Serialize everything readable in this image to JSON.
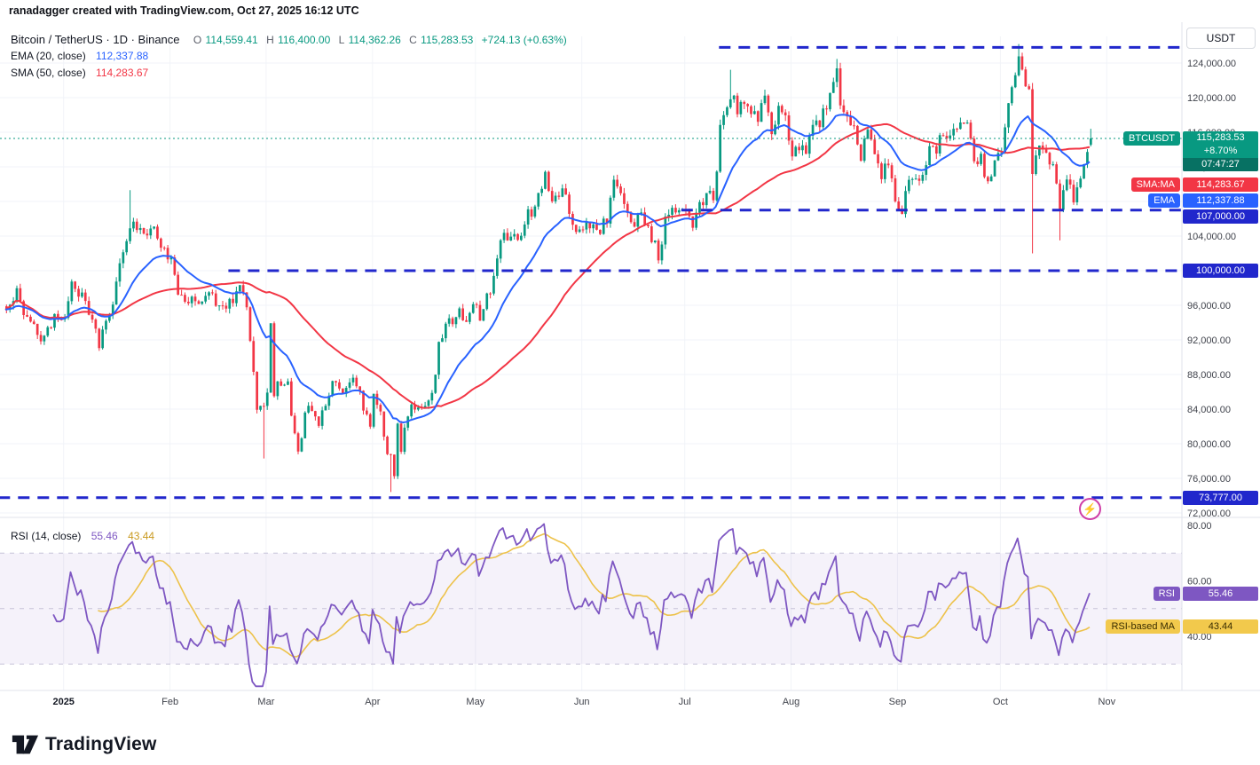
{
  "attribution": "ranadagger created with TradingView.com, Oct 27, 2025 16:12 UTC",
  "footer": {
    "logo_text": "TradingView"
  },
  "icons": {
    "lightning": "⚡"
  },
  "header_legend": {
    "symbol_title": "Bitcoin / TetherUS · 1D · Binance",
    "ohlc": {
      "o_label": "O",
      "o": "114,559.41",
      "h_label": "H",
      "h": "116,400.00",
      "l_label": "L",
      "l": "114,362.26",
      "c_label": "C",
      "c": "115,283.53",
      "change": "+724.13 (+0.63%)"
    },
    "ema_label": "EMA (20, close)",
    "ema_value": "112,337.88",
    "sma_label": "SMA (50, close)",
    "sma_value": "114,283.67"
  },
  "rsi_legend": {
    "label": "RSI (14, close)",
    "rsi_value": "55.46",
    "ma_value": "43.44"
  },
  "price_axis": {
    "currency_button": "USDT",
    "symbol_tag": "BTCUSDT",
    "last_price": "115,283.53",
    "change_pct": "+8.70%",
    "countdown": "07:47:27",
    "sma_tag": "SMA:MA",
    "sma_price": "114,283.67",
    "ema_tag": "EMA",
    "ema_price": "112,337.88"
  },
  "rsi_labels": {
    "tag": "RSI",
    "value": "55.46",
    "ma_tag": "RSI-based MA",
    "ma_value": "43.44"
  },
  "chart_data": {
    "type": "candlestick",
    "symbol": "BTCUSDT",
    "exchange": "Binance",
    "timeframe": "1D",
    "seed": 11,
    "num_days": 317,
    "y_range": [
      71000,
      127600
    ],
    "price_ticks": [
      124000,
      120000,
      116000,
      112000,
      108000,
      104000,
      100000,
      96000,
      92000,
      88000,
      84000,
      80000,
      76000,
      72000
    ],
    "ohlc_current": {
      "open": 114559.41,
      "high": 116400.0,
      "low": 114362.26,
      "close": 115283.53,
      "change": "+724.13",
      "change_pct": "+0.63%"
    },
    "close_path": [
      [
        0,
        95800
      ],
      [
        3,
        97800
      ],
      [
        6,
        94200
      ],
      [
        10,
        92300
      ],
      [
        14,
        94400
      ],
      [
        17,
        94600
      ],
      [
        19,
        98200
      ],
      [
        22,
        96900
      ],
      [
        25,
        94500
      ],
      [
        27,
        91600
      ],
      [
        30,
        94600
      ],
      [
        33,
        100500
      ],
      [
        35,
        103000
      ],
      [
        37,
        106100
      ],
      [
        40,
        103700
      ],
      [
        43,
        104800
      ],
      [
        46,
        102600
      ],
      [
        48,
        101300
      ],
      [
        50,
        97700
      ],
      [
        53,
        96600
      ],
      [
        56,
        96500
      ],
      [
        59,
        97900
      ],
      [
        62,
        95800
      ],
      [
        65,
        96100
      ],
      [
        68,
        98300
      ],
      [
        70,
        95500
      ],
      [
        71,
        91500
      ],
      [
        72,
        88700
      ],
      [
        73,
        84200
      ],
      [
        75,
        84300
      ],
      [
        76,
        86000
      ],
      [
        77,
        94200
      ],
      [
        78,
        86100
      ],
      [
        80,
        87200
      ],
      [
        82,
        86800
      ],
      [
        84,
        80700
      ],
      [
        85,
        78600
      ],
      [
        87,
        83700
      ],
      [
        89,
        84000
      ],
      [
        91,
        82600
      ],
      [
        93,
        84000
      ],
      [
        95,
        86900
      ],
      [
        98,
        85800
      ],
      [
        100,
        87500
      ],
      [
        102,
        86900
      ],
      [
        104,
        84400
      ],
      [
        106,
        82500
      ],
      [
        107,
        85200
      ],
      [
        109,
        83200
      ],
      [
        111,
        78300
      ],
      [
        112,
        79200
      ],
      [
        113,
        76300
      ],
      [
        114,
        82600
      ],
      [
        115,
        79600
      ],
      [
        117,
        83700
      ],
      [
        119,
        84500
      ],
      [
        121,
        83600
      ],
      [
        123,
        84900
      ],
      [
        125,
        87500
      ],
      [
        126,
        91200
      ],
      [
        128,
        93900
      ],
      [
        130,
        94300
      ],
      [
        132,
        95000
      ],
      [
        134,
        94300
      ],
      [
        136,
        96500
      ],
      [
        138,
        94300
      ],
      [
        140,
        96800
      ],
      [
        142,
        99000
      ],
      [
        144,
        103500
      ],
      [
        146,
        104100
      ],
      [
        148,
        103800
      ],
      [
        150,
        103500
      ],
      [
        152,
        106400
      ],
      [
        154,
        106800
      ],
      [
        156,
        109700
      ],
      [
        157,
        111700
      ],
      [
        159,
        107300
      ],
      [
        161,
        109000
      ],
      [
        163,
        108900
      ],
      [
        165,
        105600
      ],
      [
        167,
        104600
      ],
      [
        169,
        105800
      ],
      [
        171,
        104800
      ],
      [
        173,
        104900
      ],
      [
        175,
        105700
      ],
      [
        177,
        110200
      ],
      [
        179,
        108600
      ],
      [
        181,
        106000
      ],
      [
        183,
        105400
      ],
      [
        185,
        106800
      ],
      [
        187,
        104600
      ],
      [
        189,
        103300
      ],
      [
        190,
        100900
      ],
      [
        192,
        106100
      ],
      [
        194,
        107300
      ],
      [
        196,
        107100
      ],
      [
        198,
        107200
      ],
      [
        200,
        105600
      ],
      [
        202,
        108000
      ],
      [
        204,
        108300
      ],
      [
        206,
        108900
      ],
      [
        207,
        111000
      ],
      [
        208,
        117500
      ],
      [
        210,
        119100
      ],
      [
        211,
        120500
      ],
      [
        213,
        118700
      ],
      [
        215,
        119300
      ],
      [
        217,
        118000
      ],
      [
        219,
        117400
      ],
      [
        221,
        119900
      ],
      [
        223,
        115100
      ],
      [
        225,
        119400
      ],
      [
        227,
        118000
      ],
      [
        229,
        113400
      ],
      [
        231,
        114600
      ],
      [
        233,
        114100
      ],
      [
        235,
        116900
      ],
      [
        237,
        117400
      ],
      [
        239,
        119000
      ],
      [
        240,
        120200
      ],
      [
        242,
        123300
      ],
      [
        243,
        118300
      ],
      [
        245,
        117400
      ],
      [
        247,
        116200
      ],
      [
        249,
        113500
      ],
      [
        251,
        116900
      ],
      [
        253,
        113000
      ],
      [
        255,
        111200
      ],
      [
        257,
        112900
      ],
      [
        259,
        108200
      ],
      [
        261,
        107300
      ],
      [
        263,
        111200
      ],
      [
        265,
        110700
      ],
      [
        267,
        111200
      ],
      [
        269,
        114100
      ],
      [
        271,
        114000
      ],
      [
        273,
        116100
      ],
      [
        275,
        115400
      ],
      [
        277,
        116800
      ],
      [
        279,
        117500
      ],
      [
        281,
        115700
      ],
      [
        282,
        112800
      ],
      [
        284,
        113400
      ],
      [
        286,
        109700
      ],
      [
        288,
        112200
      ],
      [
        290,
        114100
      ],
      [
        292,
        119100
      ],
      [
        294,
        122400
      ],
      [
        295,
        125300
      ],
      [
        297,
        121700
      ],
      [
        298,
        121500
      ],
      [
        299,
        111600
      ],
      [
        301,
        114300
      ],
      [
        303,
        113100
      ],
      [
        305,
        112500
      ],
      [
        307,
        106600
      ],
      [
        309,
        110800
      ],
      [
        311,
        108500
      ],
      [
        313,
        110100
      ],
      [
        314,
        111700
      ],
      [
        315,
        114300
      ],
      [
        316,
        115283.53
      ]
    ],
    "wicks": [
      {
        "day": 36,
        "high": 109300
      },
      {
        "day": 75,
        "low": 78300
      },
      {
        "day": 112,
        "low": 74420
      },
      {
        "day": 211,
        "high": 123218
      },
      {
        "day": 242,
        "high": 124474
      },
      {
        "day": 295,
        "high": 126199
      },
      {
        "day": 299,
        "low": 102000
      },
      {
        "day": 307,
        "low": 103500
      }
    ],
    "overlays": [
      {
        "name": "EMA",
        "period": 20,
        "value": 112337.88,
        "color": "#2962ff"
      },
      {
        "name": "SMA",
        "period": 50,
        "value": 114283.67,
        "color": "#f23645"
      }
    ],
    "levels": [
      {
        "value": 125800,
        "label": null,
        "from_day": 208
      },
      {
        "value": 107000,
        "label": "107,000.00",
        "from_day": 197
      },
      {
        "value": 100000,
        "label": "100,000.00",
        "from_day": 65
      },
      {
        "value": 73777,
        "label": "73,777.00",
        "from_day": -2
      }
    ],
    "indicators": {
      "rsi": {
        "period": 14,
        "value": 55.46,
        "ma_period": 14,
        "ma_value": 43.44,
        "ticks": [
          80,
          60,
          40
        ],
        "band": [
          30,
          70
        ],
        "mid": 50
      }
    },
    "months": [
      {
        "label": "2025",
        "day": 17,
        "bold": true
      },
      {
        "label": "Feb",
        "day": 48
      },
      {
        "label": "Mar",
        "day": 76
      },
      {
        "label": "Apr",
        "day": 107
      },
      {
        "label": "May",
        "day": 137
      },
      {
        "label": "Jun",
        "day": 168
      },
      {
        "label": "Jul",
        "day": 198
      },
      {
        "label": "Aug",
        "day": 229
      },
      {
        "label": "Sep",
        "day": 260
      },
      {
        "label": "Oct",
        "day": 290
      },
      {
        "label": "Nov",
        "day": 321
      }
    ],
    "colors": {
      "up": "#089981",
      "down": "#f23645",
      "level_line": "#2127cc",
      "rsi_line": "#7e57c2",
      "rsi_ma_line": "#edc24a",
      "current_price": "#089981"
    }
  }
}
